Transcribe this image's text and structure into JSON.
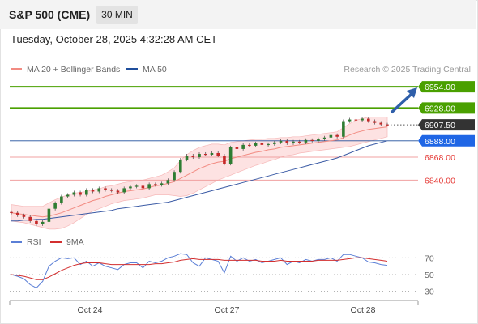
{
  "header": {
    "symbol": "S&P 500 (CME)",
    "timeframe": "30 MIN"
  },
  "datetime": "Tuesday, October 28, 2025 4:32:28 AM CET",
  "legend": {
    "ma20_label": "MA 20 + Bollinger Bands",
    "ma50_label": "MA 50",
    "ma20_color": "#f28b82",
    "ma50_color": "#1f4e9c"
  },
  "credit": "Research © 2025 Trading Central",
  "chart_data": [
    {
      "type": "line",
      "name": "price-panel",
      "x_tick_labels": [
        "Oct 24",
        "Oct 27",
        "Oct 28"
      ],
      "ylim": [
        6775,
        6965
      ],
      "levels": [
        {
          "value": 6954.0,
          "label": "6954.00",
          "kind": "resistance",
          "color": "#4aa000"
        },
        {
          "value": 6928.0,
          "label": "6928.00",
          "kind": "resistance",
          "color": "#4aa000"
        },
        {
          "value": 6907.5,
          "label": "6907.50",
          "kind": "last-price",
          "color": "#333333"
        },
        {
          "value": 6888.0,
          "label": "6888.00",
          "kind": "pivot",
          "color": "#1f66e5"
        },
        {
          "value": 6868.0,
          "label": "6868.00",
          "kind": "support",
          "color": "#e57373"
        },
        {
          "value": 6840.0,
          "label": "6840.00",
          "kind": "support",
          "color": "#e57373"
        }
      ],
      "close": [
        6800,
        6797,
        6795,
        6790,
        6786,
        6789,
        6805,
        6812,
        6820,
        6822,
        6825,
        6822,
        6828,
        6826,
        6830,
        6828,
        6827,
        6825,
        6830,
        6832,
        6833,
        6830,
        6835,
        6834,
        6836,
        6840,
        6850,
        6865,
        6870,
        6868,
        6872,
        6871,
        6873,
        6870,
        6860,
        6880,
        6878,
        6883,
        6882,
        6885,
        6883,
        6884,
        6886,
        6888,
        6885,
        6887,
        6886,
        6889,
        6888,
        6890,
        6892,
        6895,
        6893,
        6912,
        6914,
        6913,
        6915,
        6912,
        6910,
        6908,
        6907.5
      ],
      "series": [
        {
          "name": "MA 20",
          "values": [
            6800,
            6799,
            6798,
            6797,
            6796,
            6795,
            6796,
            6798,
            6800,
            6803,
            6806,
            6809,
            6812,
            6815,
            6817,
            6820,
            6822,
            6824,
            6826,
            6827,
            6828,
            6829,
            6831,
            6833,
            6834,
            6836,
            6838,
            6842,
            6846,
            6850,
            6854,
            6857,
            6860,
            6862,
            6863,
            6866,
            6868,
            6870,
            6872,
            6874,
            6875,
            6877,
            6878,
            6880,
            6881,
            6882,
            6883,
            6884,
            6885,
            6886,
            6887,
            6888,
            6889,
            6892,
            6895,
            6898,
            6900,
            6902,
            6903,
            6904,
            6905
          ]
        },
        {
          "name": "MA 50",
          "values": [
            6790,
            6790,
            6791,
            6791,
            6792,
            6792,
            6793,
            6794,
            6795,
            6796,
            6797,
            6798,
            6799,
            6800,
            6801,
            6802,
            6803,
            6805,
            6806,
            6807,
            6808,
            6809,
            6810,
            6811,
            6812,
            6813,
            6815,
            6817,
            6819,
            6821,
            6823,
            6825,
            6827,
            6829,
            6831,
            6833,
            6835,
            6837,
            6839,
            6841,
            6843,
            6845,
            6847,
            6849,
            6851,
            6853,
            6855,
            6857,
            6859,
            6861,
            6863,
            6865,
            6867,
            6870,
            6873,
            6876,
            6879,
            6882,
            6884,
            6886,
            6888
          ]
        }
      ],
      "bollinger_width": [
        10,
        10,
        10,
        11,
        12,
        13,
        16,
        18,
        19,
        19,
        18,
        16,
        14,
        13,
        12,
        12,
        11,
        11,
        11,
        11,
        11,
        11,
        11,
        11,
        12,
        14,
        17,
        22,
        25,
        26,
        26,
        25,
        24,
        22,
        20,
        20,
        19,
        18,
        17,
        16,
        15,
        14,
        13,
        12,
        11,
        11,
        10,
        10,
        10,
        10,
        10,
        10,
        10,
        12,
        14,
        15,
        15,
        15,
        14,
        13,
        12
      ]
    },
    {
      "type": "line",
      "name": "rsi-panel",
      "ylim": [
        20,
        80
      ],
      "y_tick_labels": [
        "70",
        "50",
        "30"
      ],
      "series": [
        {
          "name": "RSI",
          "color": "#5b7fd6",
          "values": [
            50,
            48,
            45,
            38,
            34,
            42,
            60,
            66,
            70,
            69,
            70,
            62,
            66,
            60,
            64,
            60,
            58,
            56,
            62,
            64,
            64,
            58,
            66,
            64,
            66,
            70,
            72,
            75,
            74,
            64,
            60,
            70,
            68,
            66,
            52,
            72,
            66,
            70,
            66,
            68,
            64,
            66,
            68,
            70,
            62,
            66,
            64,
            68,
            66,
            68,
            68,
            70,
            66,
            74,
            74,
            72,
            70,
            65,
            64,
            62,
            61
          ]
        },
        {
          "name": "9MA",
          "color": "#d32f2f",
          "values": [
            50,
            49,
            48,
            46,
            44,
            44,
            47,
            51,
            55,
            58,
            61,
            63,
            64,
            64,
            64,
            63,
            62,
            62,
            62,
            62,
            62,
            62,
            62,
            63,
            63,
            64,
            65,
            67,
            68,
            69,
            68,
            68,
            68,
            68,
            67,
            67,
            67,
            67,
            67,
            67,
            66,
            66,
            66,
            67,
            66,
            66,
            66,
            66,
            66,
            67,
            67,
            67,
            67,
            68,
            69,
            70,
            70,
            69,
            68,
            67,
            66
          ]
        }
      ]
    }
  ]
}
